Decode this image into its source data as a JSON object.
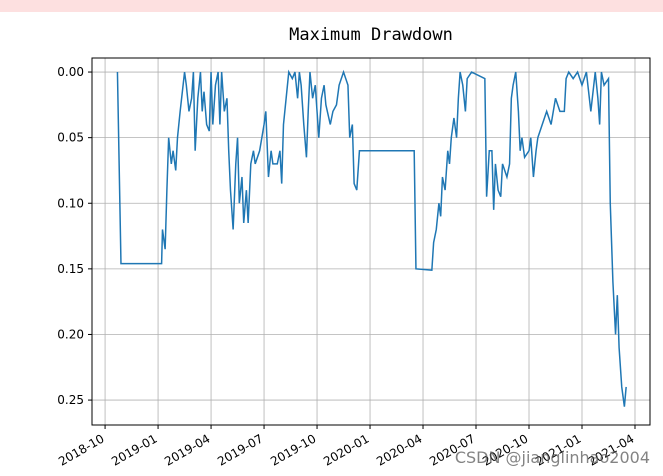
{
  "chart_data": {
    "type": "line",
    "title": "Maximum Drawdown",
    "x": [
      0.7,
      0.9,
      3.2,
      3.25,
      3.4,
      3.5,
      3.6,
      3.75,
      3.85,
      4.0,
      4.1,
      4.25,
      4.5,
      4.6,
      4.75,
      4.9,
      5.0,
      5.1,
      5.25,
      5.4,
      5.5,
      5.6,
      5.75,
      5.9,
      6.0,
      6.1,
      6.25,
      6.4,
      6.5,
      6.6,
      6.75,
      6.9,
      7.0,
      7.1,
      7.25,
      7.4,
      7.5,
      7.6,
      7.75,
      7.85,
      8.0,
      8.1,
      8.25,
      8.4,
      8.5,
      8.75,
      9.0,
      9.1,
      9.25,
      9.4,
      9.5,
      9.75,
      9.9,
      10.0,
      10.1,
      10.25,
      10.4,
      10.6,
      10.75,
      10.9,
      11.0,
      11.1,
      11.25,
      11.4,
      11.5,
      11.6,
      11.75,
      11.9,
      12.0,
      12.1,
      12.25,
      12.4,
      12.5,
      12.75,
      12.9,
      13.1,
      13.25,
      13.5,
      13.75,
      13.85,
      14.0,
      14.1,
      14.25,
      14.4,
      17.5,
      17.6,
      18.5,
      18.6,
      18.75,
      18.9,
      19.0,
      19.1,
      19.25,
      19.4,
      19.5,
      19.6,
      19.75,
      19.9,
      20.0,
      20.1,
      20.25,
      20.4,
      20.5,
      20.75,
      21.5,
      21.6,
      21.75,
      21.9,
      22.0,
      22.1,
      22.25,
      22.4,
      22.5,
      22.75,
      22.9,
      23.0,
      23.1,
      23.25,
      23.4,
      23.5,
      23.6,
      23.75,
      24.0,
      24.1,
      24.25,
      24.4,
      24.5,
      24.75,
      25.0,
      25.25,
      25.5,
      25.75,
      26.0,
      26.1,
      26.25,
      26.5,
      26.75,
      27.0,
      27.25,
      27.5,
      27.75,
      27.9,
      28.0,
      28.1,
      28.25,
      28.5,
      28.6,
      28.75,
      28.9,
      29.0,
      29.1,
      29.25,
      29.4,
      29.5
    ],
    "series": [
      {
        "color": "#1f77b4",
        "values": [
          0,
          0.146,
          0.146,
          0.12,
          0.135,
          0.09,
          0.05,
          0.07,
          0.06,
          0.075,
          0.05,
          0.03,
          0,
          0.01,
          0.03,
          0.02,
          0,
          0.06,
          0.02,
          0,
          0.03,
          0.015,
          0.04,
          0.045,
          0,
          0.04,
          0.01,
          0,
          0.04,
          0,
          0.03,
          0.02,
          0.06,
          0.09,
          0.12,
          0.07,
          0.05,
          0.1,
          0.08,
          0.115,
          0.09,
          0.115,
          0.07,
          0.06,
          0.07,
          0.06,
          0.04,
          0.03,
          0.08,
          0.06,
          0.07,
          0.07,
          0.06,
          0.085,
          0.04,
          0.02,
          0,
          0.005,
          0,
          0.02,
          0,
          0.01,
          0.04,
          0.065,
          0.03,
          0,
          0.02,
          0.01,
          0.03,
          0.05,
          0.02,
          0.01,
          0.025,
          0.04,
          0.03,
          0.025,
          0.01,
          0,
          0.01,
          0.05,
          0.04,
          0.085,
          0.09,
          0.06,
          0.06,
          0.15,
          0.151,
          0.13,
          0.12,
          0.1,
          0.11,
          0.08,
          0.09,
          0.06,
          0.07,
          0.05,
          0.035,
          0.05,
          0.02,
          0,
          0.01,
          0.03,
          0.005,
          0,
          0.005,
          0.095,
          0.06,
          0.06,
          0.105,
          0.07,
          0.09,
          0.095,
          0.07,
          0.08,
          0.07,
          0.02,
          0.01,
          0,
          0.03,
          0.06,
          0.05,
          0.065,
          0.06,
          0.05,
          0.08,
          0.06,
          0.05,
          0.04,
          0.03,
          0.04,
          0.02,
          0.03,
          0.03,
          0.005,
          0,
          0.005,
          0,
          0.01,
          0,
          0.03,
          0,
          0.02,
          0.04,
          0,
          0.01,
          0.005,
          0.1,
          0.16,
          0.2,
          0.17,
          0.21,
          0.24,
          0.255,
          0.24
        ]
      }
    ],
    "xlim": [
      -0.74,
      30.85
    ],
    "xticks": [
      {
        "value": 0,
        "label": "2018-10"
      },
      {
        "value": 3,
        "label": "2019-01"
      },
      {
        "value": 6,
        "label": "2019-04"
      },
      {
        "value": 9,
        "label": "2019-07"
      },
      {
        "value": 12,
        "label": "2019-10"
      },
      {
        "value": 15,
        "label": "2020-01"
      },
      {
        "value": 18,
        "label": "2020-04"
      },
      {
        "value": 21,
        "label": "2020-07"
      },
      {
        "value": 24,
        "label": "2020-10"
      },
      {
        "value": 27,
        "label": "2021-01"
      },
      {
        "value": 30,
        "label": "2021-04"
      }
    ],
    "ylim": [
      -0.0107,
      0.269
    ],
    "y_inverted": true,
    "yticks": [
      {
        "value": 0,
        "label": "0.00"
      },
      {
        "value": 0.05,
        "label": "0.05"
      },
      {
        "value": 0.1,
        "label": "0.10"
      },
      {
        "value": 0.15,
        "label": "0.15"
      },
      {
        "value": 0.2,
        "label": "0.20"
      },
      {
        "value": 0.25,
        "label": "0.25"
      }
    ],
    "grid": true,
    "watermark": "CSDN @jianglinhao2004"
  }
}
